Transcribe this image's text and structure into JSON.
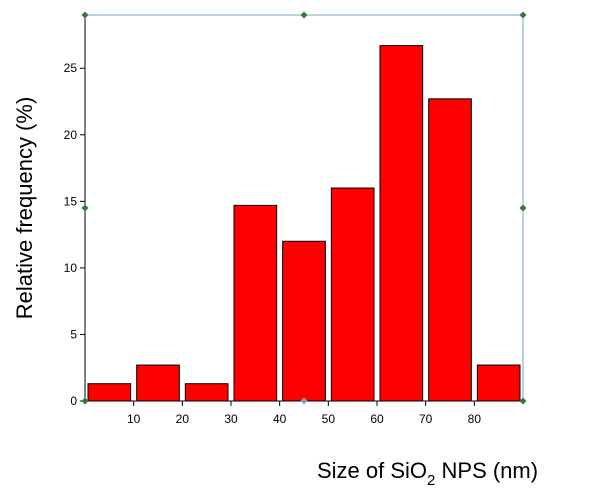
{
  "chart_data": {
    "type": "bar",
    "xlabel_main": "Size of SiO",
    "xlabel_sub": "2",
    "xlabel_tail": " NPS (nm)",
    "ylabel": "Relative frequency (%)",
    "x": [
      5,
      15,
      25,
      35,
      45,
      55,
      65,
      75,
      85
    ],
    "values": [
      1.3,
      2.7,
      1.3,
      14.7,
      12.0,
      16.0,
      26.7,
      22.7,
      2.7
    ],
    "bin_width": 10,
    "xlim": [
      0,
      90
    ],
    "ylim": [
      0,
      29
    ],
    "x_ticks": [
      10,
      20,
      30,
      40,
      50,
      60,
      70,
      80
    ],
    "y_ticks": [
      0,
      5,
      10,
      15,
      20,
      25
    ],
    "grid": false,
    "colors": {
      "bar_fill": "#ff0000",
      "bar_stroke": "#000000",
      "frame_selection": "#7f9fcf",
      "handle": "#2e7d32"
    }
  }
}
